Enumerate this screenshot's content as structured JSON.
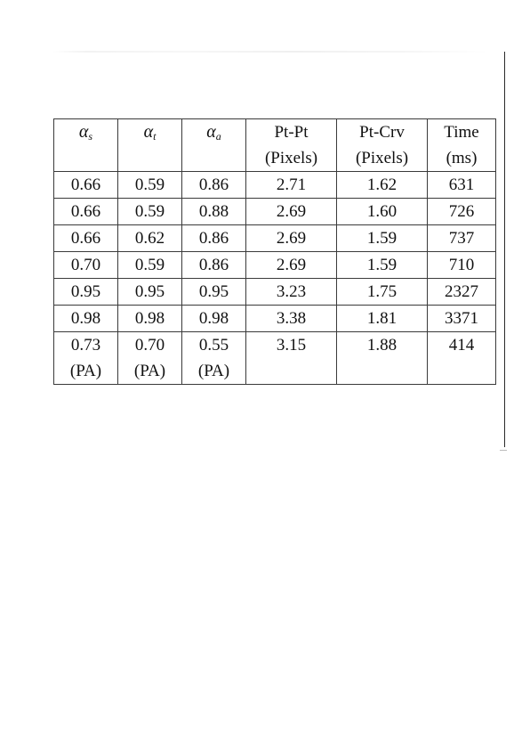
{
  "table": {
    "headers": [
      {
        "symbol": "α",
        "sub": "s",
        "lines": []
      },
      {
        "symbol": "α",
        "sub": "t",
        "lines": []
      },
      {
        "symbol": "α",
        "sub": "a",
        "lines": []
      },
      {
        "lines": [
          "Pt-Pt",
          "(Pixels)"
        ]
      },
      {
        "lines": [
          "Pt-Crv",
          "(Pixels)"
        ]
      },
      {
        "lines": [
          "Time",
          "(ms)"
        ]
      }
    ],
    "rows": [
      [
        "0.66",
        "0.59",
        "0.86",
        "2.71",
        "1.62",
        "631"
      ],
      [
        "0.66",
        "0.59",
        "0.88",
        "2.69",
        "1.60",
        "726"
      ],
      [
        "0.66",
        "0.62",
        "0.86",
        "2.69",
        "1.59",
        "737"
      ],
      [
        "0.70",
        "0.59",
        "0.86",
        "2.69",
        "1.59",
        "710"
      ],
      [
        "0.95",
        "0.95",
        "0.95",
        "3.23",
        "1.75",
        "2327"
      ],
      [
        "0.98",
        "0.98",
        "0.98",
        "3.38",
        "1.81",
        "3371"
      ]
    ],
    "last_row": [
      [
        "0.73",
        "(PA)"
      ],
      [
        "0.70",
        "(PA)"
      ],
      [
        "0.55",
        "(PA)"
      ],
      [
        "3.15"
      ],
      [
        "1.88"
      ],
      [
        "414"
      ]
    ]
  }
}
